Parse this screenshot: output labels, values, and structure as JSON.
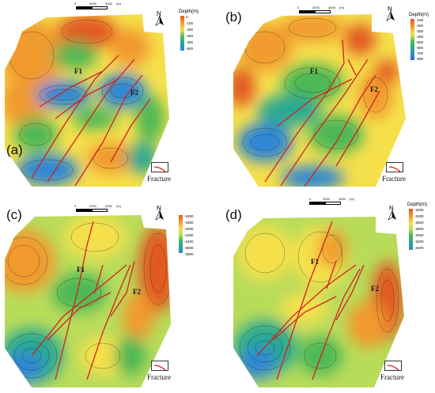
{
  "colors": {
    "fault": "#d42020",
    "contour": "#1a1a1a",
    "ramp": [
      "#e25822",
      "#f19a2e",
      "#f6e04b",
      "#b8dc5a",
      "#4db855",
      "#2aa893",
      "#2f86d6",
      "#3a5fc8"
    ]
  },
  "icons": [
    "north-arrow-icon",
    "fracture-icon"
  ],
  "panels": [
    {
      "id": "a",
      "label": "(a)",
      "scale": {
        "ticks": [
          "0",
          "2000",
          "4000"
        ],
        "unit": "(m)"
      },
      "legend": {
        "title": "Depth(m)",
        "ticks": [
          "0",
          "-100",
          "-200",
          "-300",
          "-400",
          "-500"
        ]
      },
      "fault_labels": [
        "F1",
        "F2"
      ],
      "fracture_label": "Fracture",
      "north": "N"
    },
    {
      "id": "b",
      "label": "(b)",
      "scale": {
        "ticks": [
          "0",
          "2000",
          "4000"
        ],
        "unit": "(m)"
      },
      "legend": {
        "title": "Depth(m)",
        "ticks": [
          "-100",
          "-200",
          "-300",
          "-400",
          "-500",
          "-600",
          "-700",
          "-800"
        ]
      },
      "fault_labels": [
        "F1",
        "F2"
      ],
      "fracture_label": "Fracture",
      "north": "N"
    },
    {
      "id": "c",
      "label": "(c)",
      "scale": {
        "ticks": [
          "0",
          "2000",
          "4000"
        ],
        "unit": "(m)"
      },
      "legend": {
        "title": "",
        "ticks": [
          "-1600",
          "-1800",
          "-2000",
          "-2200",
          "-2400",
          "-2600",
          "-2800"
        ]
      },
      "fault_labels": [
        "F1",
        "F2"
      ],
      "fracture_label": "Fracture",
      "north": "N"
    },
    {
      "id": "d",
      "label": "(d)",
      "scale": {
        "ticks": [
          "0",
          "2000",
          "4000"
        ],
        "unit": "(m)"
      },
      "legend": {
        "title": "Depth(m)",
        "ticks": [
          "-2200",
          "-2400",
          "-2600",
          "-2800",
          "-3000",
          "-3200",
          "-3400"
        ]
      },
      "fault_labels": [
        "F1",
        "F2"
      ],
      "fracture_label": "Fracture",
      "north": "N"
    }
  ]
}
